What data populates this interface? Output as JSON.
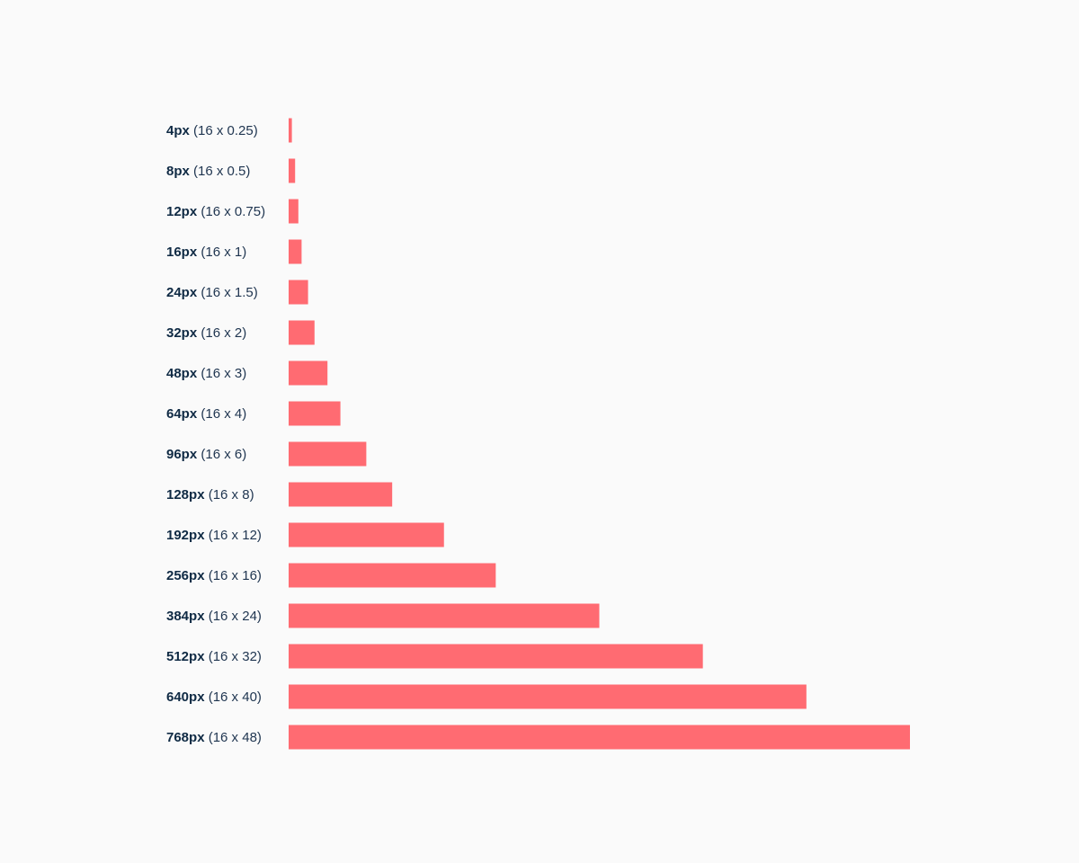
{
  "chart_data": {
    "type": "bar",
    "orientation": "horizontal",
    "categories": [
      {
        "value_label": "4px",
        "formula": "(16 x 0.25)"
      },
      {
        "value_label": "8px",
        "formula": "(16 x 0.5)"
      },
      {
        "value_label": "12px",
        "formula": "(16 x 0.75)"
      },
      {
        "value_label": "16px",
        "formula": "(16 x 1)"
      },
      {
        "value_label": "24px",
        "formula": "(16 x 1.5)"
      },
      {
        "value_label": "32px",
        "formula": "(16 x 2)"
      },
      {
        "value_label": "48px",
        "formula": "(16 x 3)"
      },
      {
        "value_label": "64px",
        "formula": "(16 x 4)"
      },
      {
        "value_label": "96px",
        "formula": "(16 x 6)"
      },
      {
        "value_label": "128px",
        "formula": "(16 x 8)"
      },
      {
        "value_label": "192px",
        "formula": "(16 x 12)"
      },
      {
        "value_label": "256px",
        "formula": "(16 x 16)"
      },
      {
        "value_label": "384px",
        "formula": "(16 x 24)"
      },
      {
        "value_label": "512px",
        "formula": "(16 x 32)"
      },
      {
        "value_label": "640px",
        "formula": "(16 x 40)"
      },
      {
        "value_label": "768px",
        "formula": "(16 x 48)"
      }
    ],
    "values": [
      4,
      8,
      12,
      16,
      24,
      32,
      48,
      64,
      96,
      128,
      192,
      256,
      384,
      512,
      640,
      768
    ],
    "xlim": [
      0,
      768
    ],
    "title": "",
    "xlabel": "",
    "ylabel": "",
    "grid": false,
    "legend": "none",
    "colors": {
      "bar": "#ff6b72",
      "label_bold": "#0f2a44",
      "label_regular": "#1f3550",
      "background": "#fafafa"
    }
  }
}
